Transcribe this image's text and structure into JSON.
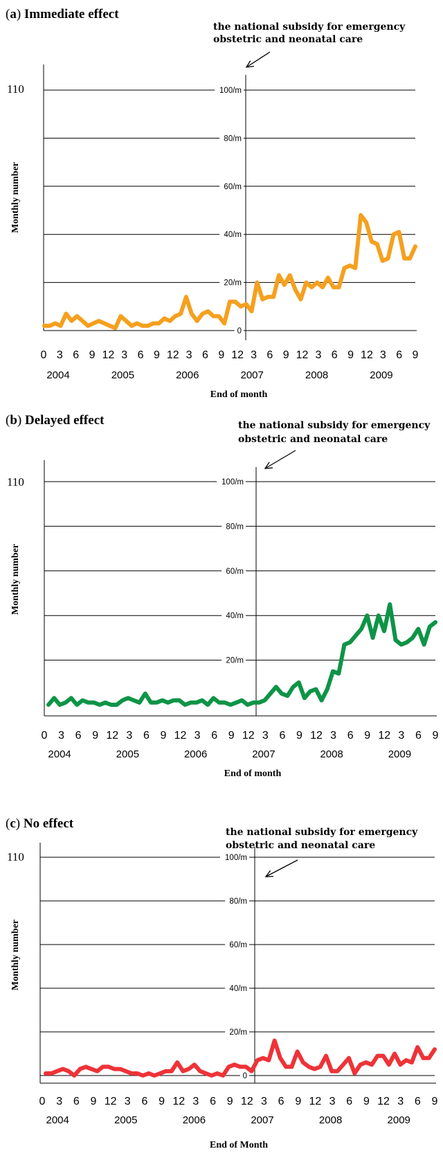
{
  "chart_data": [
    {
      "type": "line",
      "title_letter": "a",
      "title": "Immediate effect",
      "annotation": [
        "the national subsidy for emergency",
        "obstetric and neonatal care"
      ],
      "ylabel": "Monthly number",
      "xlabel": "End of month",
      "y_top_label": "110",
      "y_ticks": [
        {
          "value": 0,
          "label": "0"
        },
        {
          "value": 20,
          "label": "20/m"
        },
        {
          "value": 40,
          "label": "40/m"
        },
        {
          "value": 60,
          "label": "60/m"
        },
        {
          "value": 80,
          "label": "80/m"
        },
        {
          "value": 100,
          "label": "100/m"
        }
      ],
      "ylim": [
        0,
        110
      ],
      "x_tick_labels": [
        "0",
        "3",
        "6",
        "9",
        "12",
        "3",
        "6",
        "9",
        "12",
        "3",
        "6",
        "9",
        "12",
        "3",
        "6",
        "9",
        "12",
        "3",
        "6",
        "9",
        "12",
        "3",
        "6",
        "9"
      ],
      "year_labels": [
        "2004",
        "2005",
        "2006",
        "2007",
        "2008",
        "2009"
      ],
      "intervention_month": 37,
      "color": "#f5a01f",
      "series": [
        {
          "values": [
            2,
            2,
            3,
            2,
            7,
            4,
            6,
            4,
            2,
            3,
            4,
            3,
            2,
            1,
            6,
            4,
            2,
            3,
            2,
            2,
            3,
            3,
            5,
            4,
            6,
            7,
            14,
            7,
            4,
            7,
            8,
            6,
            6,
            3,
            12,
            12,
            10,
            11,
            8,
            20,
            13,
            14,
            14,
            23,
            19,
            23,
            17,
            13,
            20,
            18,
            20,
            18,
            22,
            18,
            18,
            26,
            27,
            26,
            48,
            45,
            37,
            36,
            29,
            30,
            40,
            41,
            30,
            30,
            35
          ]
        }
      ]
    },
    {
      "type": "line",
      "title_letter": "b",
      "title": "Delayed effect",
      "annotation": [
        "the national subsidy for emergency",
        "obstetric and neonatal care"
      ],
      "ylabel": "Monthly number",
      "xlabel": "End of month",
      "y_top_label": "110",
      "y_ticks": [
        {
          "value": 20,
          "label": "20/m"
        },
        {
          "value": 40,
          "label": "40/m"
        },
        {
          "value": 60,
          "label": "60/m"
        },
        {
          "value": 80,
          "label": "80/m"
        },
        {
          "value": 100,
          "label": "100/m"
        }
      ],
      "ylim": [
        0,
        110
      ],
      "x_tick_labels": [
        "0",
        "3",
        "6",
        "9",
        "12",
        "3",
        "6",
        "9",
        "12",
        "3",
        "6",
        "9",
        "12",
        "3",
        "6",
        "9",
        "12",
        "3",
        "6",
        "9",
        "12",
        "3",
        "6",
        "9"
      ],
      "year_labels": [
        "2004",
        "2005",
        "2006",
        "2007",
        "2008",
        "2009"
      ],
      "intervention_month": 37,
      "color": "#0e9447",
      "series": [
        {
          "values": [
            0,
            3,
            0,
            1,
            3,
            0,
            2,
            1,
            1,
            0,
            1,
            0,
            0,
            2,
            3,
            2,
            1,
            5,
            1,
            1,
            2,
            1,
            2,
            2,
            0,
            1,
            1,
            2,
            0,
            3,
            1,
            1,
            0,
            1,
            2,
            0,
            1,
            1,
            2,
            5,
            8,
            5,
            4,
            8,
            10,
            3,
            6,
            7,
            2,
            7,
            15,
            14,
            27,
            28,
            31,
            34,
            40,
            30,
            40,
            33,
            45,
            29,
            27,
            28,
            30,
            34,
            27,
            35,
            37
          ]
        }
      ]
    },
    {
      "type": "line",
      "title_letter": "c",
      "title": "No effect",
      "annotation": [
        "the national subsidy for emergency",
        "obstetric and neonatal care"
      ],
      "ylabel": "Monthly number",
      "xlabel": "End of Month",
      "y_top_label": "110",
      "y_ticks": [
        {
          "value": 0,
          "label": "0"
        },
        {
          "value": 20,
          "label": "20/m"
        },
        {
          "value": 40,
          "label": "40/m"
        },
        {
          "value": 60,
          "label": "60/m"
        },
        {
          "value": 80,
          "label": "80/m"
        },
        {
          "value": 100,
          "label": "100/m"
        }
      ],
      "ylim": [
        0,
        110
      ],
      "x_tick_labels": [
        "0",
        "3",
        "6",
        "9",
        "12",
        "3",
        "6",
        "9",
        "12",
        "3",
        "6",
        "9",
        "12",
        "3",
        "6",
        "9",
        "12",
        "3",
        "6",
        "9",
        "12",
        "3",
        "6",
        "9"
      ],
      "year_labels": [
        "2004",
        "2005",
        "2006",
        "2007",
        "2008",
        "2009"
      ],
      "intervention_month": 37,
      "color": "#ee3338",
      "series": [
        {
          "values": [
            1,
            1,
            2,
            3,
            2,
            0,
            3,
            4,
            3,
            2,
            4,
            4,
            3,
            3,
            2,
            1,
            1,
            0,
            1,
            0,
            1,
            2,
            2,
            6,
            2,
            3,
            5,
            2,
            1,
            0,
            1,
            0,
            4,
            5,
            4,
            4,
            2,
            7,
            8,
            7,
            16,
            8,
            4,
            4,
            11,
            6,
            4,
            3,
            4,
            9,
            2,
            2,
            5,
            8,
            1,
            5,
            6,
            5,
            9,
            9,
            5,
            10,
            5,
            7,
            6,
            13,
            8,
            8,
            12
          ]
        }
      ]
    }
  ]
}
